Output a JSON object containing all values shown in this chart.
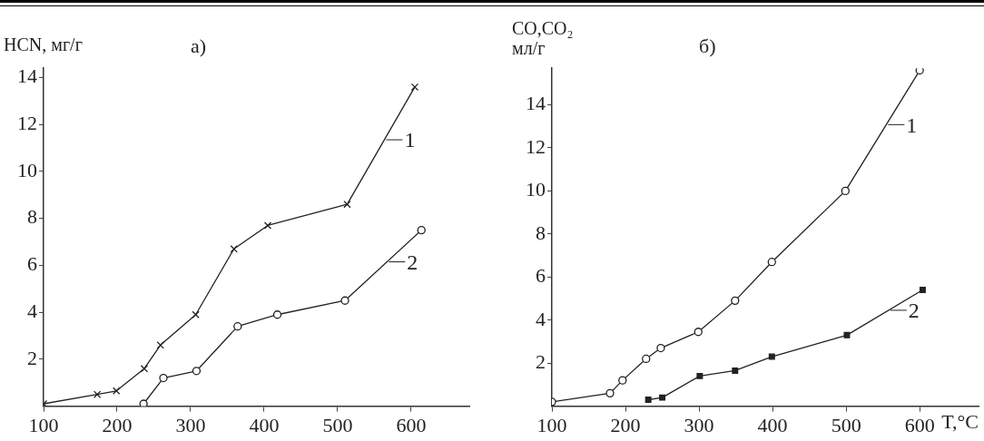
{
  "chart_data": [
    {
      "type": "line",
      "title": "а)",
      "ylabel": "HCN, мг/г",
      "xlim": [
        100,
        680
      ],
      "xticks": [
        100,
        200,
        300,
        400,
        500,
        600
      ],
      "legend": "right",
      "ylim": [
        0,
        14.4
      ],
      "yticks": [
        {
          "value": 2,
          "label": "2"
        },
        {
          "value": 4,
          "label": "4"
        },
        {
          "value": 6,
          "label": "6"
        },
        {
          "value": 8,
          "label": "8"
        },
        {
          "value": 10,
          "label": "10"
        },
        {
          "value": 12,
          "label": "12"
        },
        {
          "value": 14,
          "label": "14"
        }
      ],
      "grid": false,
      "line_style": "solid",
      "series": [
        {
          "name": "1",
          "color": "#222222",
          "marker": "cross",
          "x": [
            100,
            173,
            199,
            237,
            259,
            307,
            359,
            405,
            513,
            605
          ],
          "values": [
            0.1,
            0.5,
            0.65,
            1.6,
            2.6,
            3.9,
            6.7,
            7.7,
            8.6,
            13.6
          ]
        },
        {
          "name": "2",
          "color": "#222222",
          "marker": "circle",
          "x": [
            236,
            263,
            308,
            364,
            418,
            510,
            614
          ],
          "values": [
            0.1,
            1.2,
            1.5,
            3.4,
            3.9,
            4.5,
            7.5
          ]
        }
      ]
    },
    {
      "type": "line",
      "title": "б)",
      "ylabel": "CO,CO₂ мл/г",
      "xlabel": "T,°C",
      "xlim": [
        100,
        680
      ],
      "xticks": [
        100,
        200,
        300,
        400,
        500,
        600
      ],
      "legend": "right",
      "ylim": [
        0,
        15.7
      ],
      "yticks": [
        {
          "value": 2,
          "label": "2"
        },
        {
          "value": 4,
          "label": "4"
        },
        {
          "value": 6,
          "label": "6"
        },
        {
          "value": 8,
          "label": "8"
        },
        {
          "value": 10,
          "label": "10"
        },
        {
          "value": 12,
          "label": "12"
        },
        {
          "value": 14,
          "label": "14"
        }
      ],
      "grid": false,
      "line_style": "solid",
      "series": [
        {
          "name": "1",
          "color": "#222222",
          "marker": "circle",
          "x": [
            100,
            179,
            196,
            228,
            248,
            299,
            349,
            399,
            499,
            600
          ],
          "values": [
            0.2,
            0.6,
            1.2,
            2.2,
            2.7,
            3.45,
            4.9,
            6.7,
            10.0,
            15.6
          ]
        },
        {
          "name": "2",
          "color": "#222222",
          "marker": "square",
          "x": [
            231,
            250,
            301,
            349,
            399,
            501,
            604
          ],
          "values": [
            0.3,
            0.4,
            1.4,
            1.65,
            2.3,
            3.3,
            5.4
          ]
        }
      ]
    }
  ]
}
